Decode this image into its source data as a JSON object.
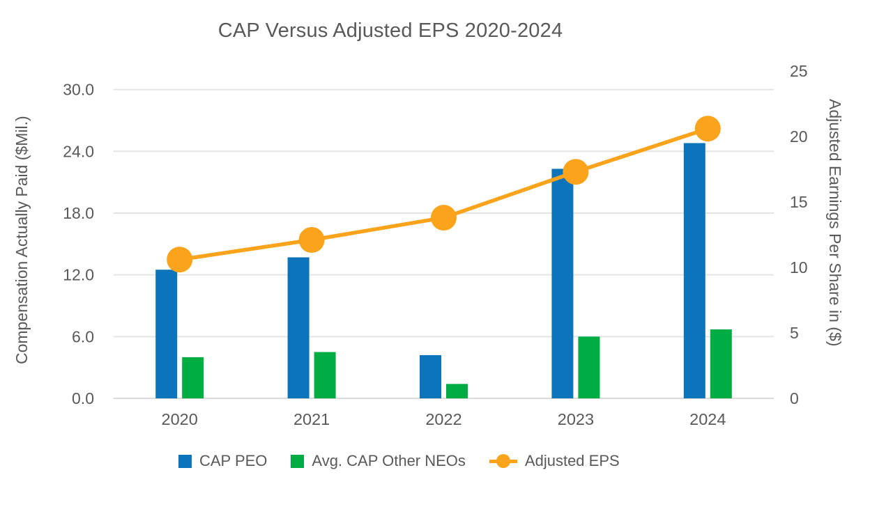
{
  "chart_data": {
    "type": "combo-bar-line",
    "title": "CAP Versus Adjusted EPS 2020-2024",
    "categories": [
      "2020",
      "2021",
      "2022",
      "2023",
      "2024"
    ],
    "series": [
      {
        "name": "CAP PEO",
        "type": "bar",
        "axis": "left",
        "color": "#0b74ba",
        "values": [
          12.5,
          13.7,
          4.2,
          22.3,
          24.8
        ]
      },
      {
        "name": "Avg. CAP Other NEOs",
        "type": "bar",
        "axis": "left",
        "color": "#00ad43",
        "values": [
          4.0,
          4.5,
          1.4,
          6.0,
          6.7
        ]
      },
      {
        "name": "Adjusted EPS",
        "type": "line",
        "axis": "right",
        "color": "#fba31a",
        "values": [
          10.6,
          12.1,
          13.8,
          17.3,
          20.6
        ]
      }
    ],
    "axes": {
      "left": {
        "label": "Compensation Actually Paid ($Mil.)",
        "tick_labels": [
          "0.0",
          "6.0",
          "12.0",
          "18.0",
          "24.0",
          "30.0"
        ],
        "tick_values": [
          0,
          6,
          12,
          18,
          24,
          30
        ],
        "range": [
          0,
          31.8
        ]
      },
      "right": {
        "label": "Adjusted Earnings Per Share in ($)",
        "tick_labels": [
          "0",
          "5",
          "10",
          "15",
          "20",
          "25"
        ],
        "tick_values": [
          0,
          5,
          10,
          15,
          20,
          25
        ],
        "range": [
          0,
          25
        ]
      }
    },
    "legend": {
      "position": "bottom",
      "entries": [
        {
          "label": "CAP PEO",
          "marker": "square",
          "color": "#0b74ba"
        },
        {
          "label": "Avg. CAP Other NEOs",
          "marker": "square",
          "color": "#00ad43"
        },
        {
          "label": "Adjusted EPS",
          "marker": "line-circle",
          "color": "#fba31a"
        }
      ]
    },
    "grid": "horizontal-only",
    "colors": {
      "text": "#595959",
      "gridline": "#e4e4e4",
      "baseline": "#d9d9d9",
      "background": "#ffffff"
    }
  }
}
